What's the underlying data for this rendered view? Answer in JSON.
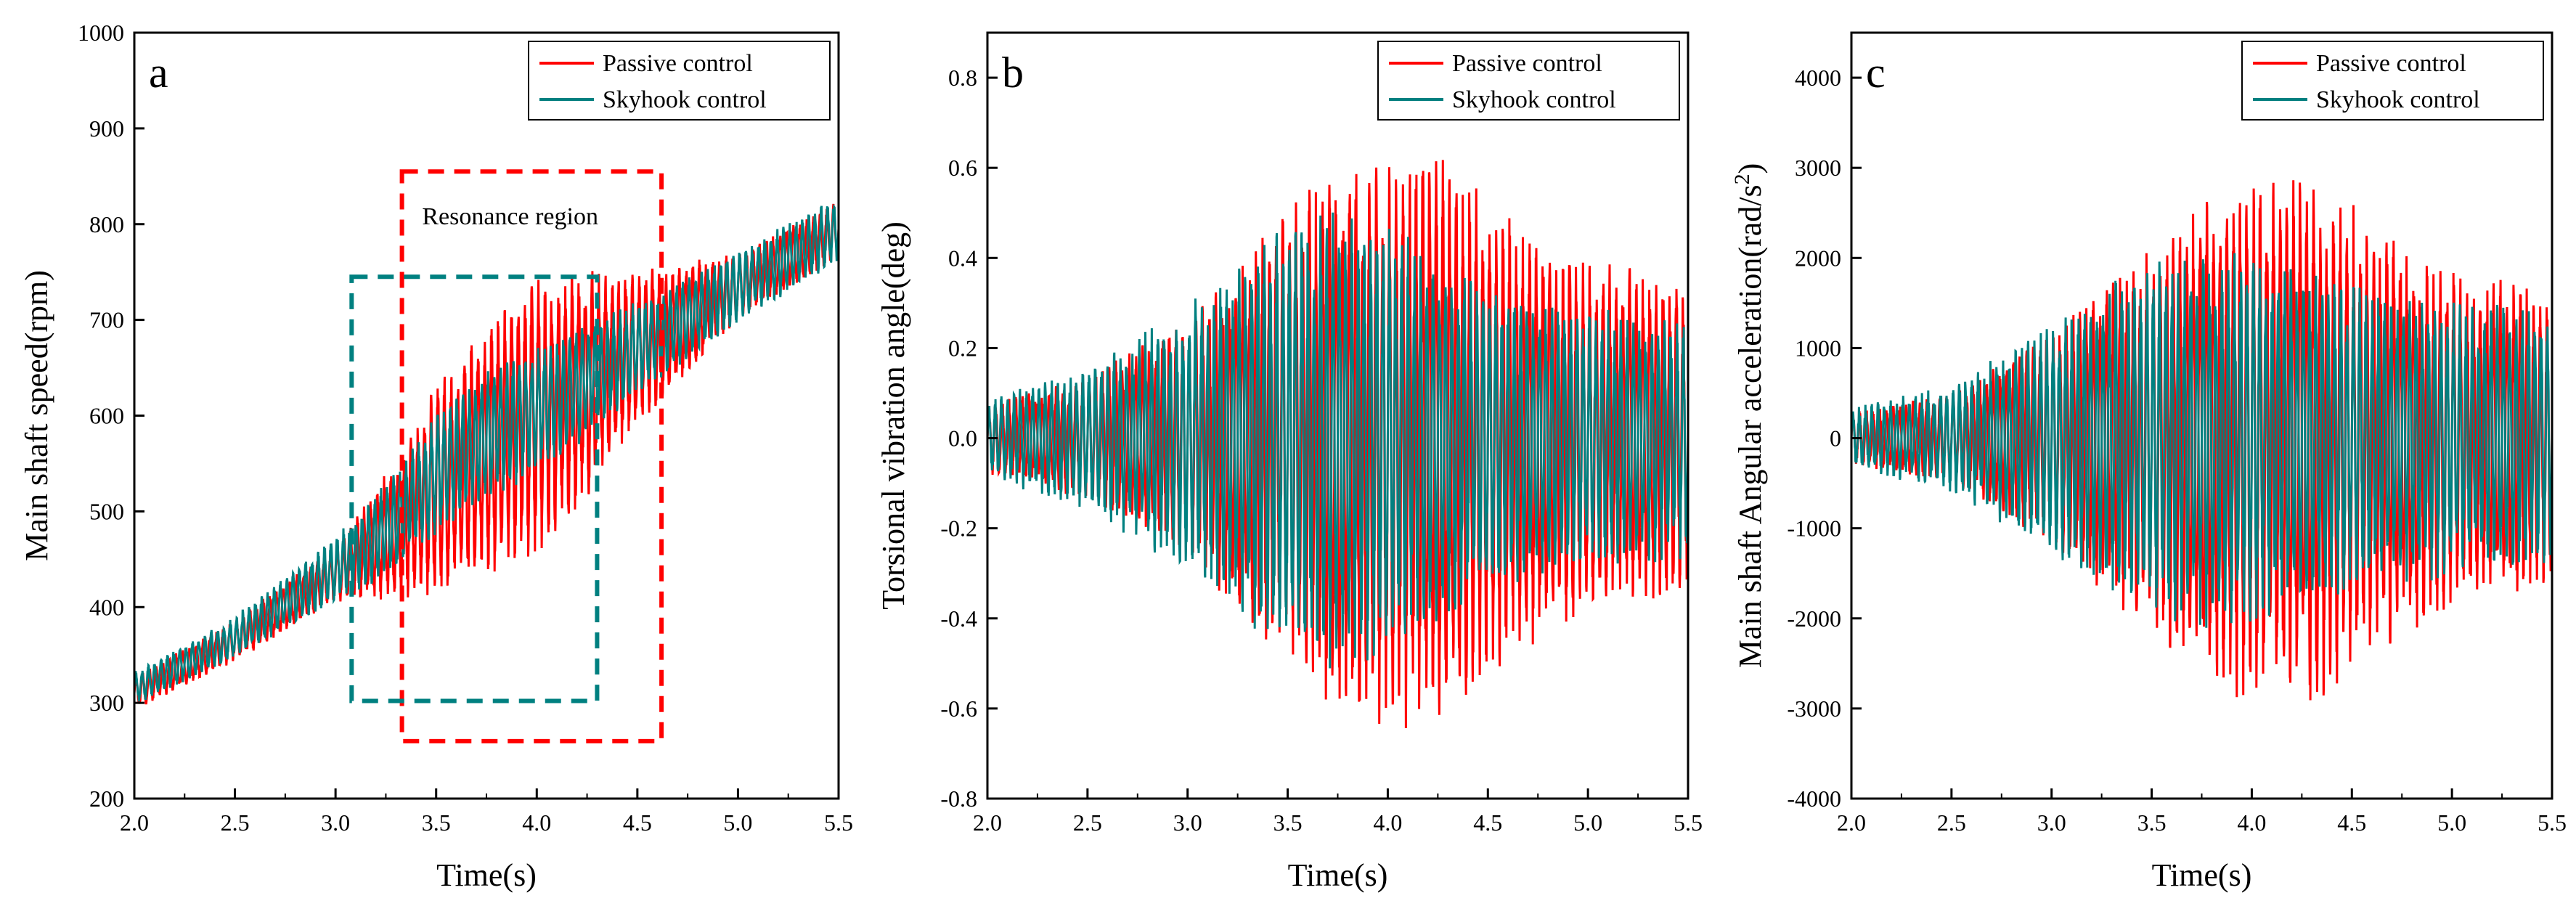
{
  "colors": {
    "passive": "#ff0000",
    "skyhook": "#008080",
    "axis": "#000000"
  },
  "chart_data": [
    {
      "type": "line",
      "panel_letter": "a",
      "xlabel": "Time(s)",
      "ylabel": "Main shaft speed(rpm)",
      "xlim": [
        2.0,
        5.5
      ],
      "ylim": [
        200,
        1000
      ],
      "xticks": [
        "2.0",
        "2.5",
        "3.0",
        "3.5",
        "4.0",
        "4.5",
        "5.0",
        "5.5"
      ],
      "yticks": [
        "200",
        "300",
        "400",
        "500",
        "600",
        "700",
        "800",
        "900",
        "1000"
      ],
      "legend": {
        "position": "top-right",
        "entries": [
          "Passive control",
          "Skyhook control"
        ]
      },
      "annotation": "Resonance region",
      "regions": [
        {
          "series": "Passive control",
          "x": [
            3.33,
            4.62
          ],
          "y": [
            260,
            855
          ]
        },
        {
          "series": "Skyhook control",
          "x": [
            3.08,
            4.3
          ],
          "y": [
            302,
            745
          ]
        }
      ],
      "series": [
        {
          "name": "Passive control",
          "x": [
            2.0,
            2.5,
            3.0,
            3.3,
            3.5,
            3.8,
            4.0,
            4.2,
            4.5,
            5.0,
            5.5
          ],
          "center": [
            310,
            365,
            435,
            480,
            520,
            570,
            600,
            625,
            670,
            735,
            795
          ],
          "amplitude": [
            18,
            22,
            30,
            75,
            115,
            140,
            145,
            130,
            85,
            35,
            30
          ]
        },
        {
          "name": "Skyhook control",
          "x": [
            2.0,
            2.5,
            3.0,
            3.3,
            3.5,
            3.8,
            4.0,
            4.2,
            4.5,
            5.0,
            5.5
          ],
          "center": [
            315,
            368,
            440,
            490,
            540,
            585,
            608,
            630,
            670,
            735,
            795
          ],
          "amplitude": [
            18,
            22,
            35,
            55,
            65,
            70,
            68,
            62,
            50,
            38,
            35
          ]
        }
      ]
    },
    {
      "type": "line",
      "panel_letter": "b",
      "xlabel": "Time(s)",
      "ylabel": "Torsional vibration angle(deg)",
      "xlim": [
        2.0,
        5.5
      ],
      "ylim": [
        -0.8,
        0.9
      ],
      "xticks": [
        "2.0",
        "2.5",
        "3.0",
        "3.5",
        "4.0",
        "4.5",
        "5.0",
        "5.5"
      ],
      "yticks": [
        "-0.8",
        "-0.6",
        "-0.4",
        "-0.2",
        "0.0",
        "0.2",
        "0.4",
        "0.6",
        "0.8"
      ],
      "legend": {
        "position": "top-right",
        "entries": [
          "Passive control",
          "Skyhook control"
        ]
      },
      "series": [
        {
          "name": "Passive control",
          "x": [
            2.0,
            2.5,
            3.0,
            3.3,
            3.5,
            3.7,
            3.9,
            4.1,
            4.3,
            4.6,
            5.0,
            5.5
          ],
          "center": [
            0,
            0,
            0,
            0,
            0,
            0,
            0,
            0,
            0,
            0,
            0,
            0
          ],
          "amplitude": [
            0.08,
            0.14,
            0.27,
            0.42,
            0.52,
            0.6,
            0.64,
            0.67,
            0.62,
            0.5,
            0.4,
            0.36
          ]
        },
        {
          "name": "Skyhook control",
          "x": [
            2.0,
            2.5,
            3.0,
            3.3,
            3.5,
            3.7,
            3.9,
            4.1,
            4.3,
            4.6,
            5.0,
            5.5
          ],
          "center": [
            0,
            0,
            0,
            0,
            0,
            0,
            0,
            0,
            0,
            0,
            0,
            0
          ],
          "amplitude": [
            0.09,
            0.16,
            0.3,
            0.42,
            0.48,
            0.52,
            0.5,
            0.45,
            0.4,
            0.33,
            0.29,
            0.27
          ]
        }
      ]
    },
    {
      "type": "line",
      "panel_letter": "c",
      "xlabel": "Time(s)",
      "ylabel": "Main shaft Angular acceleration(rad/s",
      "ylabel_sup": "2",
      "ylabel_end": ")",
      "xlim": [
        2.0,
        5.5
      ],
      "ylim": [
        -4000,
        4500
      ],
      "xticks": [
        "2.0",
        "2.5",
        "3.0",
        "3.5",
        "4.0",
        "4.5",
        "5.0",
        "5.5"
      ],
      "yticks": [
        "-4000",
        "-3000",
        "-2000",
        "-1000",
        "0",
        "1000",
        "2000",
        "3000",
        "4000"
      ],
      "legend": {
        "position": "top-right",
        "entries": [
          "Passive control",
          "Skyhook control"
        ]
      },
      "series": [
        {
          "name": "Passive control",
          "x": [
            2.0,
            2.5,
            3.0,
            3.3,
            3.5,
            3.8,
            4.0,
            4.3,
            4.6,
            5.0,
            5.5
          ],
          "center": [
            0,
            0,
            0,
            0,
            0,
            0,
            0,
            0,
            0,
            0,
            0
          ],
          "amplitude": [
            300,
            500,
            1200,
            1800,
            2200,
            2800,
            2950,
            3000,
            2500,
            1900,
            1700
          ]
        },
        {
          "name": "Skyhook control",
          "x": [
            2.0,
            2.5,
            3.0,
            3.3,
            3.5,
            3.8,
            4.0,
            4.3,
            4.6,
            5.0,
            5.5
          ],
          "center": [
            0,
            0,
            0,
            0,
            0,
            0,
            0,
            0,
            0,
            0,
            0
          ],
          "amplitude": [
            350,
            600,
            1300,
            1800,
            2000,
            2150,
            2050,
            1900,
            1700,
            1550,
            1500
          ]
        }
      ]
    }
  ]
}
